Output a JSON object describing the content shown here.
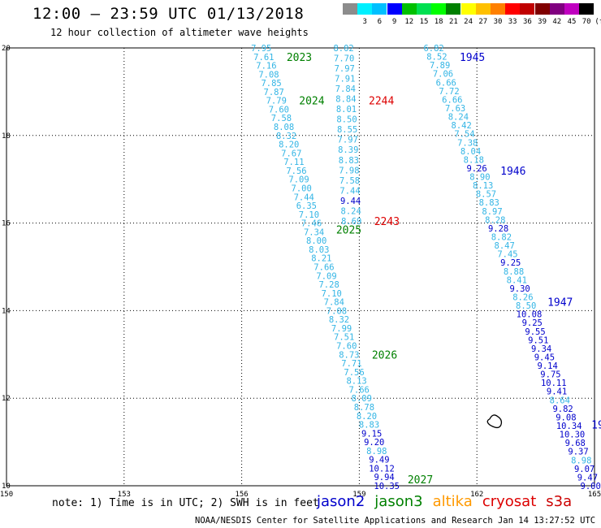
{
  "header": {
    "title": "12:00 – 23:59 UTC 01/13/2018",
    "subtitle": "12 hour collection of altimeter wave heights"
  },
  "legend": {
    "unit": "(ft)",
    "swatches": [
      {
        "label": "",
        "color": "#8c8c8c"
      },
      {
        "label": "3",
        "color": "#00f0ff"
      },
      {
        "label": "6",
        "color": "#00c0ff"
      },
      {
        "label": "9",
        "color": "#0000ff"
      },
      {
        "label": "12",
        "color": "#00c000"
      },
      {
        "label": "15",
        "color": "#00e050"
      },
      {
        "label": "18",
        "color": "#00ff00"
      },
      {
        "label": "21",
        "color": "#008000"
      },
      {
        "label": "24",
        "color": "#ffff00"
      },
      {
        "label": "27",
        "color": "#ffc000"
      },
      {
        "label": "30",
        "color": "#ff8000"
      },
      {
        "label": "33",
        "color": "#ff0000"
      },
      {
        "label": "36",
        "color": "#c00000"
      },
      {
        "label": "39",
        "color": "#800000"
      },
      {
        "label": "42",
        "color": "#800080"
      },
      {
        "label": "45",
        "color": "#c000c0"
      },
      {
        "label": "70",
        "color": "#000000"
      }
    ]
  },
  "map": {
    "lon_range": [
      150,
      165
    ],
    "lat_range": [
      10,
      20
    ],
    "lon_ticks": [
      "150",
      "153",
      "156",
      "159",
      "162",
      "165"
    ],
    "lat_ticks": [
      "20",
      "18",
      "16",
      "14",
      "12",
      "10"
    ]
  },
  "tracks": [
    {
      "satellite": "jason3",
      "color_light": "#33b5e5",
      "color_dark": "#0000cc",
      "start": [
        156.5,
        20.0
      ],
      "end": [
        159.7,
        10.0
      ],
      "values": [
        "7.95",
        "7.61",
        "7.16",
        "7.08",
        "7.85",
        "7.87",
        "7.79",
        "7.60",
        "7.58",
        "8.08",
        "8.32",
        "8.20",
        "7.67",
        "7.11",
        "7.56",
        "7.09",
        "7.00",
        "7.44",
        "6.35",
        "7.10",
        "7.46",
        "7.34",
        "8.00",
        "8.03",
        "8.21",
        "7.66",
        "7.09",
        "7.28",
        "7.10",
        "7.84",
        "7.08",
        "8.32",
        "7.99",
        "7.51",
        "7.60",
        "8.73",
        "7.71",
        "7.56",
        "8.13",
        "7.66",
        "8.09",
        "8.78",
        "8.20",
        "8.83",
        "9.15",
        "9.20",
        "8.98",
        "9.49",
        "10.12",
        "9.94",
        "10.35"
      ],
      "time_labels": [
        {
          "text": "2023",
          "lat": 19.8
        },
        {
          "text": "2024",
          "lat": 18.8
        },
        {
          "text": "2025",
          "lat": 15.85
        },
        {
          "text": "2026",
          "lat": 13.0
        },
        {
          "text": "2027",
          "lat": 10.15
        }
      ]
    },
    {
      "satellite": "cryosat",
      "color_light": "#33b5e5",
      "color_dark": "#0000cc",
      "start": [
        158.6,
        20.0
      ],
      "end": [
        158.8,
        16.05
      ],
      "values": [
        "8.02",
        "7.70",
        "7.97",
        "7.91",
        "7.84",
        "8.84",
        "8.01",
        "8.50",
        "8.55",
        "7.97",
        "8.39",
        "8.83",
        "7.98",
        "7.58",
        "7.44",
        "9.44",
        "8.24",
        "8.69"
      ],
      "time_labels": [
        {
          "text": "2244",
          "lat": 18.8
        },
        {
          "text": "2243",
          "lat": 16.05
        }
      ]
    },
    {
      "satellite": "jason2",
      "color_light": "#33b5e5",
      "color_dark": "#0000cc",
      "start": [
        160.9,
        20.0
      ],
      "end": [
        164.9,
        10.0
      ],
      "values": [
        "6.82",
        "8.52",
        "7.89",
        "7.06",
        "6.66",
        "7.72",
        "6.66",
        "7.63",
        "8.24",
        "8.42",
        "7.54",
        "7.38",
        "8.04",
        "8.18",
        "9.26",
        "8.90",
        "8.13",
        "8.57",
        "8.83",
        "8.97",
        "8.28",
        "9.28",
        "8.82",
        "8.47",
        "7.45",
        "9.25",
        "8.88",
        "8.41",
        "9.30",
        "8.26",
        "8.50",
        "10.08",
        "9.25",
        "9.55",
        "9.51",
        "9.34",
        "9.45",
        "9.14",
        "9.75",
        "10.11",
        "9.41",
        "8.64",
        "9.82",
        "9.08",
        "10.34",
        "10.30",
        "9.68",
        "9.37",
        "8.98",
        "9.07",
        "9.47",
        "9.00"
      ],
      "time_labels": [
        {
          "text": "1945",
          "lat": 19.8
        },
        {
          "text": "1946",
          "lat": 17.2
        },
        {
          "text": "1947",
          "lat": 14.2
        },
        {
          "text": "194",
          "lat": 11.4
        }
      ]
    }
  ],
  "time_label_colors": {
    "jason2": "#0000cc",
    "jason3": "#008000",
    "cryosat": "#dd0000"
  },
  "notes": {
    "text": "note: 1) Time is in UTC; 2) SWH is in feet"
  },
  "satellites": [
    {
      "name": "jason2",
      "color": "#0000cc"
    },
    {
      "name": "jason3",
      "color": "#008000"
    },
    {
      "name": "altika",
      "color": "#ff9900"
    },
    {
      "name": "cryosat",
      "color": "#dd0000"
    },
    {
      "name": "s3a",
      "color": "#cc0000"
    }
  ],
  "footer": {
    "credit": "NOAA/NESDIS Center for Satellite Applications and Research",
    "timestamp": "Jan 14 13:27:52 UTC 2018"
  }
}
